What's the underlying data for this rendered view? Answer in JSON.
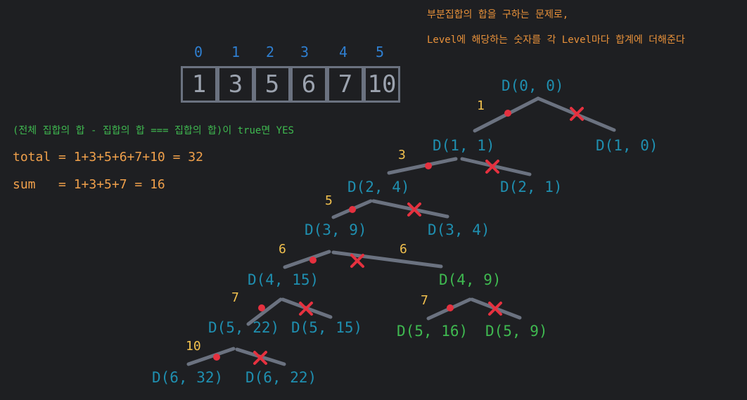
{
  "notes": {
    "line1": "부분집합의 합을 구하는 문제로,",
    "line2": "Level에 해당하는 숫자를 각 Level마다 합계에 더해준다"
  },
  "array": {
    "indices": [
      "0",
      "1",
      "2",
      "3",
      "4",
      "5"
    ],
    "values": [
      "1",
      "3",
      "5",
      "6",
      "7",
      "10"
    ]
  },
  "condition": "(전체 집합의 합 - 집합의 합 === 집합의 합)이 true면 YES",
  "total_line": "total = 1+3+5+6+7+10 = 32",
  "sum_line": "sum   = 1+3+5+7 = 16",
  "tree": {
    "root": "D(0, 0)",
    "lv1_label": "1",
    "n11": "D(1, 1)",
    "n10": "D(1, 0)",
    "lv2_label": "3",
    "n24": "D(2, 4)",
    "n21": "D(2, 1)",
    "lv3_label": "5",
    "n39": "D(3, 9)",
    "n34": "D(3, 4)",
    "lv4_label_left": "6",
    "lv4_label_right": "6",
    "n415": "D(4, 15)",
    "n49": "D(4, 9)",
    "lv5_label_left": "7",
    "lv5_label_right": "7",
    "n522": "D(5, 22)",
    "n515": "D(5, 15)",
    "n516": "D(5, 16)",
    "n59": "D(5, 9)",
    "lv6_label": "10",
    "n632": "D(6, 32)",
    "n622": "D(6, 22)"
  },
  "colors": {
    "background": "#1e1f22",
    "node_teal": "#1f8fb0",
    "node_green": "#3fb950",
    "level_label": "#f2c14e",
    "note": "#e8913a",
    "mark": "#e5313f",
    "edge": "#6b7280"
  }
}
